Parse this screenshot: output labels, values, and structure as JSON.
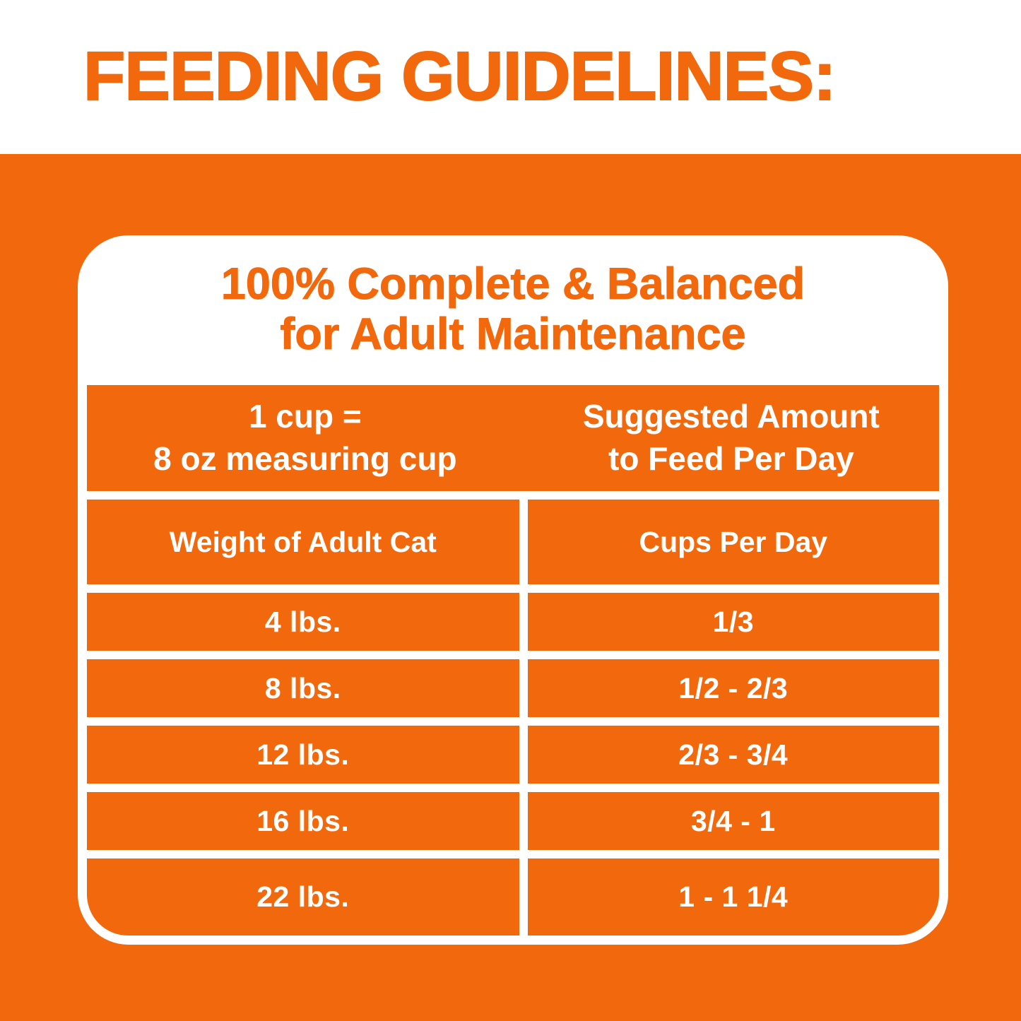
{
  "page": {
    "title": "FEEDING GUIDELINES:"
  },
  "card": {
    "heading_line1": "100% Complete & Balanced",
    "heading_line2": "for Adult Maintenance",
    "table": {
      "unit_note_line1": "1 cup =",
      "unit_note_line2": "8 oz measuring cup",
      "suggested_line1": "Suggested Amount",
      "suggested_line2": "to Feed Per Day",
      "col1_header": "Weight of Adult Cat",
      "col2_header": "Cups Per Day",
      "rows": [
        {
          "weight": "4 lbs.",
          "cups": "1/3"
        },
        {
          "weight": "8 lbs.",
          "cups": "1/2 - 2/3"
        },
        {
          "weight": "12 lbs.",
          "cups": "2/3 - 3/4"
        },
        {
          "weight": "16 lbs.",
          "cups": "3/4 - 1"
        },
        {
          "weight": "22 lbs.",
          "cups": "1 - 1 1/4"
        }
      ]
    }
  },
  "colors": {
    "orange": "#f2690d",
    "white": "#ffffff"
  }
}
